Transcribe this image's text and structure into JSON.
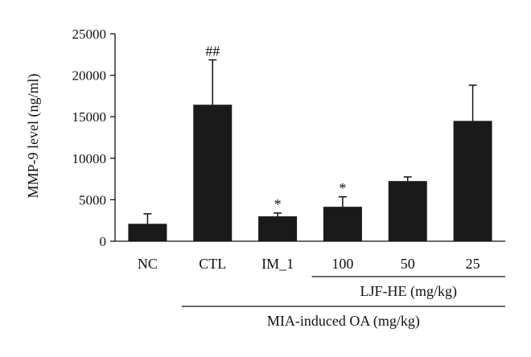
{
  "chart_data": {
    "type": "bar",
    "categories": [
      "NC",
      "CTL",
      "IM_1",
      "100",
      "50",
      "25"
    ],
    "values": [
      2100,
      16450,
      3000,
      4150,
      7250,
      14500
    ],
    "errors": [
      1200,
      5400,
      400,
      1200,
      500,
      4300
    ],
    "annotations": [
      "",
      "##",
      "*",
      "*",
      "",
      ""
    ],
    "title": "",
    "xlabel": "",
    "ylabel": "MMP-9 level (ng/ml)",
    "ylim": [
      0,
      25000
    ],
    "yticks": [
      "0",
      "5000",
      "10000",
      "15000",
      "20000",
      "25000"
    ],
    "grid": false,
    "bar_color": "#1a1a1a",
    "groups": [
      {
        "label": "LJF-HE (mg/kg)",
        "from": 3,
        "to": 5
      },
      {
        "label": "MIA-induced OA (mg/kg)",
        "from": 1,
        "to": 5
      }
    ]
  }
}
